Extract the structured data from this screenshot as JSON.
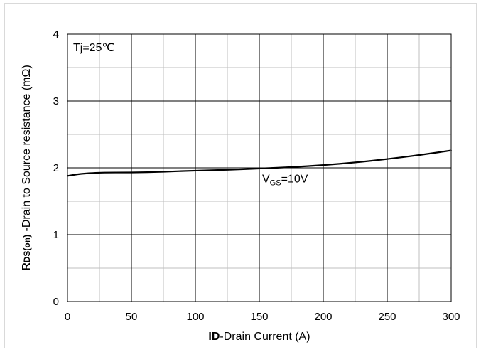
{
  "chart_data": {
    "type": "line",
    "title": "",
    "xlabel_bold": "ID",
    "xlabel_rest": "-Drain Current  (A)",
    "ylabel_bold": "R",
    "ylabel_sub": "DS(on)",
    "ylabel_rest": " -Drain to Source resistance (mΩ)",
    "xlim": [
      0,
      300
    ],
    "ylim": [
      0,
      4
    ],
    "x_major_ticks": [
      0,
      50,
      100,
      150,
      200,
      250,
      300
    ],
    "x_tick_labels": [
      "0",
      "50",
      "100",
      "150",
      "200",
      "250",
      "300"
    ],
    "y_major_ticks": [
      0,
      1,
      2,
      3,
      4
    ],
    "y_tick_labels": [
      "0",
      "1",
      "2",
      "3",
      "4"
    ],
    "x_minor_step": 25,
    "y_minor_step": 0.5,
    "grid": true,
    "series": [
      {
        "name": "VGS=10V",
        "color": "#000000",
        "x": [
          0,
          10,
          25,
          50,
          75,
          100,
          125,
          150,
          175,
          200,
          225,
          250,
          275,
          300
        ],
        "y": [
          1.88,
          1.91,
          1.93,
          1.93,
          1.94,
          1.96,
          1.97,
          1.99,
          2.01,
          2.04,
          2.08,
          2.13,
          2.19,
          2.26
        ]
      }
    ],
    "annotations": {
      "tj": "Tj=25℃",
      "vgs_main": "V",
      "vgs_sub": "GS",
      "vgs_rest": "=10V"
    }
  }
}
